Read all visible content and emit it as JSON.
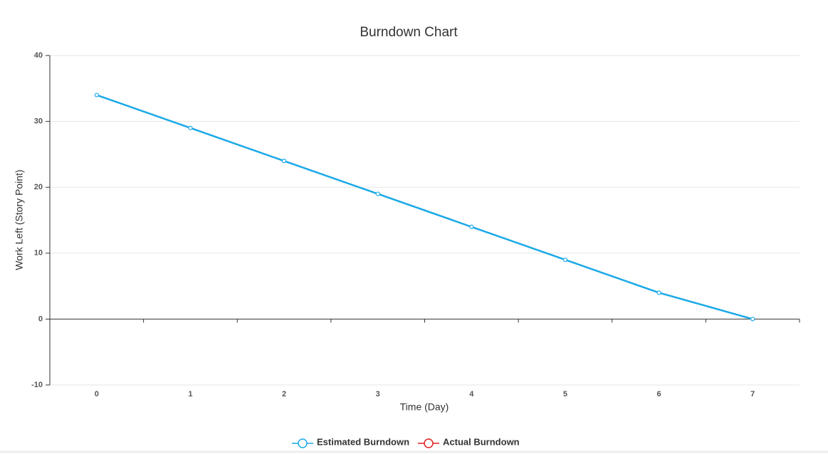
{
  "chart_data": {
    "type": "line",
    "title": "Burndown Chart",
    "x_label": "Time (Day)",
    "y_label": "Work Left (Story Point)",
    "categories": [
      "0",
      "1",
      "2",
      "3",
      "4",
      "5",
      "6",
      "7"
    ],
    "series": [
      {
        "name": "Estimated Burndown",
        "color": "#1ba9e6",
        "values": [
          34,
          29,
          24,
          19,
          14,
          9,
          4,
          0
        ]
      },
      {
        "name": "Actual Burndown",
        "color": "#e02020",
        "values": [
          null,
          null,
          null,
          null,
          null,
          null,
          null,
          null
        ]
      }
    ],
    "ylim": [
      -10,
      40
    ],
    "yticks": [
      -10,
      0,
      10,
      20,
      30,
      40
    ],
    "grid": true,
    "legend": "bottom"
  }
}
